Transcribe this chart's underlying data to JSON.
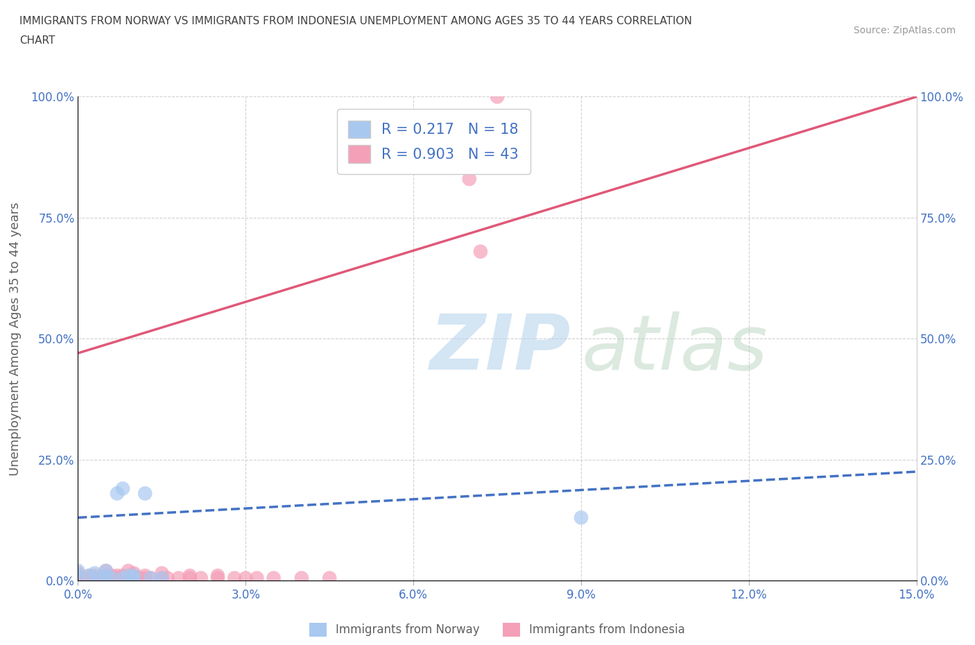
{
  "title_line1": "IMMIGRANTS FROM NORWAY VS IMMIGRANTS FROM INDONESIA UNEMPLOYMENT AMONG AGES 35 TO 44 YEARS CORRELATION",
  "title_line2": "CHART",
  "source": "Source: ZipAtlas.com",
  "ylabel": "Unemployment Among Ages 35 to 44 years",
  "xlim": [
    0.0,
    0.15
  ],
  "ylim": [
    0.0,
    1.0
  ],
  "xticks": [
    0.0,
    0.03,
    0.06,
    0.09,
    0.12,
    0.15
  ],
  "yticks": [
    0.0,
    0.25,
    0.5,
    0.75,
    1.0
  ],
  "xtick_labels": [
    "0.0%",
    "3.0%",
    "6.0%",
    "9.0%",
    "12.0%",
    "15.0%"
  ],
  "ytick_labels": [
    "0.0%",
    "25.0%",
    "50.0%",
    "75.0%",
    "100.0%"
  ],
  "norway_R": 0.217,
  "norway_N": 18,
  "indonesia_R": 0.903,
  "indonesia_N": 43,
  "norway_color": "#a8c8f0",
  "indonesia_color": "#f4a0b8",
  "norway_line_color": "#4472c4",
  "indonesia_line_color": "#e05878",
  "legend_norway": "Immigrants from Norway",
  "legend_indonesia": "Immigrants from Indonesia",
  "norway_scatter_x": [
    0.0,
    0.0,
    0.002,
    0.003,
    0.004,
    0.005,
    0.005,
    0.006,
    0.007,
    0.008,
    0.008,
    0.009,
    0.01,
    0.01,
    0.012,
    0.013,
    0.015,
    0.09
  ],
  "norway_scatter_y": [
    0.01,
    0.02,
    0.01,
    0.015,
    0.005,
    0.01,
    0.02,
    0.005,
    0.18,
    0.005,
    0.19,
    0.01,
    0.005,
    0.01,
    0.18,
    0.005,
    0.005,
    0.13
  ],
  "indonesia_scatter_x": [
    0.0,
    0.0,
    0.001,
    0.002,
    0.003,
    0.003,
    0.004,
    0.005,
    0.005,
    0.005,
    0.006,
    0.006,
    0.007,
    0.007,
    0.008,
    0.008,
    0.009,
    0.009,
    0.01,
    0.01,
    0.01,
    0.011,
    0.012,
    0.012,
    0.013,
    0.015,
    0.015,
    0.016,
    0.018,
    0.02,
    0.02,
    0.022,
    0.025,
    0.025,
    0.028,
    0.03,
    0.032,
    0.035,
    0.04,
    0.045,
    0.07,
    0.072,
    0.075
  ],
  "indonesia_scatter_y": [
    0.005,
    0.015,
    0.005,
    0.01,
    0.005,
    0.01,
    0.005,
    0.005,
    0.01,
    0.02,
    0.005,
    0.01,
    0.005,
    0.01,
    0.005,
    0.01,
    0.005,
    0.02,
    0.005,
    0.01,
    0.015,
    0.005,
    0.005,
    0.01,
    0.005,
    0.005,
    0.015,
    0.005,
    0.005,
    0.005,
    0.01,
    0.005,
    0.005,
    0.01,
    0.005,
    0.005,
    0.005,
    0.005,
    0.005,
    0.005,
    0.83,
    0.68,
    1.0
  ],
  "norway_line_x0": 0.0,
  "norway_line_y0": 0.13,
  "norway_line_x1": 0.15,
  "norway_line_y1": 0.225,
  "indonesia_line_x0": 0.0,
  "indonesia_line_y0": 0.47,
  "indonesia_line_x1": 0.15,
  "indonesia_line_y1": 1.0,
  "background_color": "#ffffff",
  "grid_color": "#cccccc",
  "title_color": "#404040",
  "axis_label_color": "#606060",
  "tick_color": "#4472c4",
  "legend_text_color": "#4472c4"
}
